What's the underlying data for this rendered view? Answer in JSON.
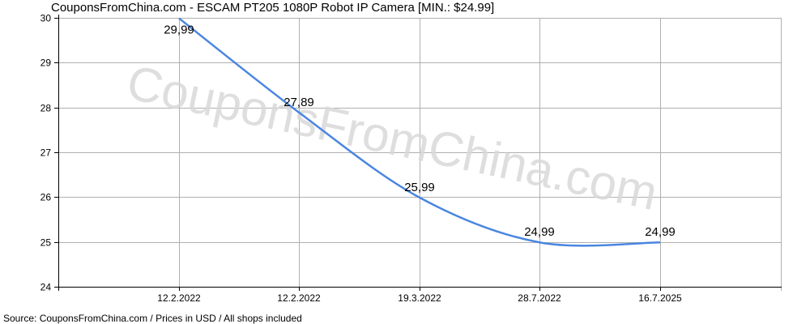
{
  "header": {
    "title": "CouponsFromChina.com - ESCAM PT205 1080P Robot IP Camera [MIN.: $24.99]"
  },
  "footer": {
    "source": "Source: CouponsFromChina.com / Prices in USD / All shops included"
  },
  "watermark": {
    "text": "CouponsFromChina.com"
  },
  "colors": {
    "line": "#4a86e0",
    "grid": "#b0b0b0",
    "axis": "#000000"
  },
  "chart_data": {
    "type": "line",
    "title": "CouponsFromChina.com - ESCAM PT205 1080P Robot IP Camera [MIN.: $24.99]",
    "xlabel": "",
    "ylabel": "",
    "categories": [
      "12.2.2022",
      "12.2.2022",
      "19.3.2022",
      "28.7.2022",
      "16.7.2025"
    ],
    "series": [
      {
        "values": [
          29.99,
          27.89,
          25.99,
          24.99,
          24.99
        ]
      }
    ],
    "data_labels": [
      "29,99",
      "27,89",
      "25,99",
      "24,99",
      "24,99"
    ],
    "y_ticks": [
      "24",
      "25",
      "26",
      "27",
      "28",
      "29",
      "30"
    ],
    "ylim": [
      24,
      30
    ],
    "grid": true,
    "legend": "none"
  }
}
